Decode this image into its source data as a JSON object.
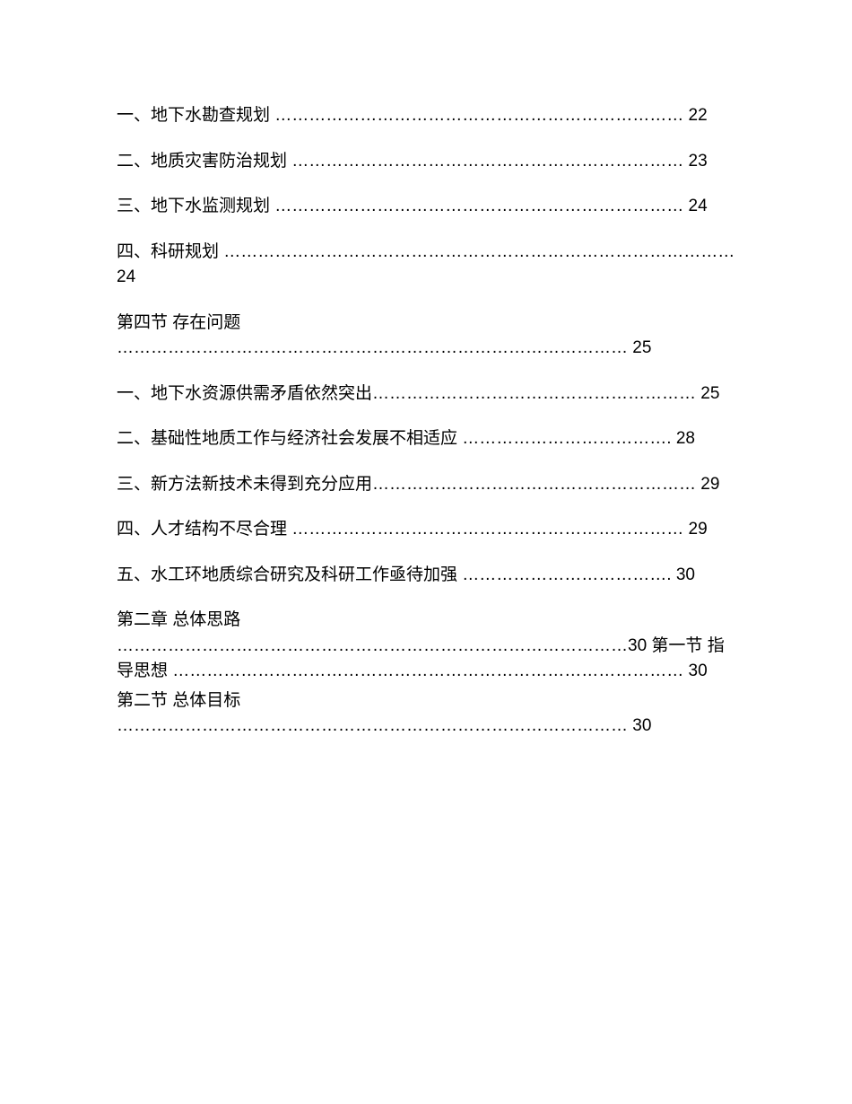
{
  "entries": [
    {
      "text": "一、地下水勘查规划 ……………………………………………………………… 22",
      "spacing": "normal"
    },
    {
      "text": "二、地质灾害防治规划 …………………………………………………………… 23",
      "spacing": "normal"
    },
    {
      "text": "三、地下水监测规划 ……………………………………………………………… 24",
      "spacing": "normal"
    },
    {
      "text": "四、科研规划 ……………………………………………………………………………… 24",
      "spacing": "normal"
    },
    {
      "text": "第四节 存在问题 ……………………………………………………………………………… 25",
      "spacing": "normal"
    },
    {
      "text": "一、地下水资源供需矛盾依然突出………………………………………………… 25",
      "spacing": "normal"
    },
    {
      "text": "二、基础性地质工作与经济社会发展不相适应 ………………………………. 28",
      "spacing": "normal"
    },
    {
      "text": "三、新方法新技术未得到充分应用………………………………………………… 29",
      "spacing": "normal"
    },
    {
      "text": "四、人才结构不尽合理 …………………………………………………………… 29",
      "spacing": "normal"
    },
    {
      "text": "五、水工环地质综合研究及科研工作亟待加强 ………………………………. 30",
      "spacing": "normal"
    },
    {
      "text": "第二章 总体思路 ………………………………………………………………………………30 第一节 指导思想 ……………………………………………………………………………… 30",
      "spacing": "tight"
    },
    {
      "text": "第二节 总体目标 ……………………………………………………………………………… 30",
      "spacing": "normal"
    }
  ]
}
